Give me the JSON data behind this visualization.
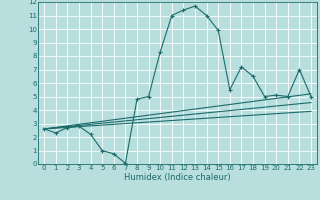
{
  "title": "",
  "xlabel": "Humidex (Indice chaleur)",
  "xlim": [
    -0.5,
    23.5
  ],
  "ylim": [
    0,
    12
  ],
  "xticks": [
    0,
    1,
    2,
    3,
    4,
    5,
    6,
    7,
    8,
    9,
    10,
    11,
    12,
    13,
    14,
    15,
    16,
    17,
    18,
    19,
    20,
    21,
    22,
    23
  ],
  "yticks": [
    0,
    1,
    2,
    3,
    4,
    5,
    6,
    7,
    8,
    9,
    10,
    11,
    12
  ],
  "bg_color": "#b8dede",
  "line_color": "#1a6b6b",
  "grid_color": "#ffffff",
  "series1_x": [
    0,
    1,
    2,
    3,
    4,
    5,
    6,
    7,
    8,
    9,
    10,
    11,
    12,
    13,
    14,
    15,
    16,
    17,
    18,
    19,
    20,
    21,
    22,
    23
  ],
  "series1_y": [
    2.6,
    2.3,
    2.7,
    2.8,
    2.2,
    1.0,
    0.75,
    0.05,
    4.8,
    5.0,
    8.3,
    11.0,
    11.4,
    11.7,
    11.0,
    9.9,
    5.5,
    7.2,
    6.5,
    5.0,
    5.1,
    5.0,
    7.0,
    5.0
  ],
  "series2_x": [
    0,
    23
  ],
  "series2_y": [
    2.6,
    3.9
  ],
  "series3_x": [
    0,
    23
  ],
  "series3_y": [
    2.6,
    4.55
  ],
  "series4_x": [
    0,
    23
  ],
  "series4_y": [
    2.6,
    5.2
  ]
}
